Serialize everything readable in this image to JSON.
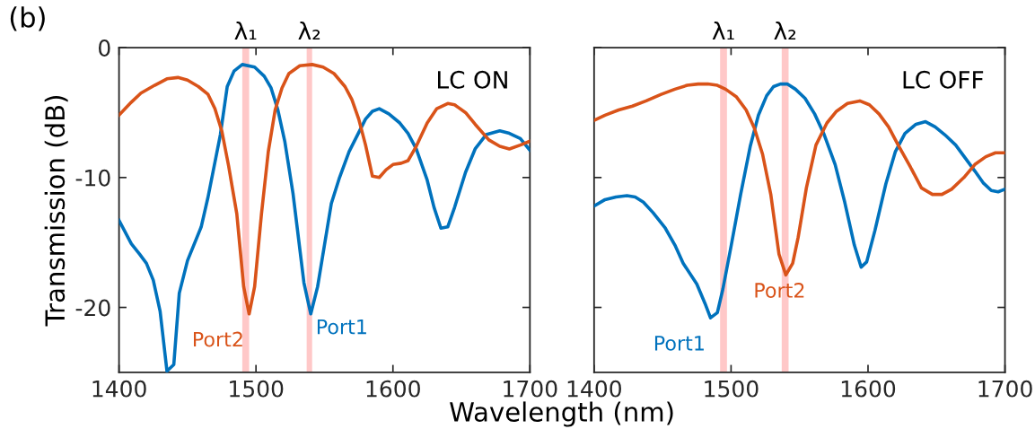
{
  "chart_data": [
    {
      "type": "line",
      "ylabel": "Transmission (dB)",
      "xlabel": "Wavelength (nm)",
      "xlim": [
        1400,
        1700
      ],
      "xticks": [
        1400,
        1500,
        1600,
        1700
      ],
      "ylim": [
        -25,
        0
      ],
      "yticks": [
        -20,
        -10,
        0
      ],
      "grid": false,
      "legend": false,
      "annotations": [
        "(b)",
        "LC ON"
      ],
      "bands": [
        {
          "axis": "x",
          "from": 1490,
          "to": 1495,
          "label": "λ₁",
          "color": "#ffc8c8"
        },
        {
          "axis": "x",
          "from": 1537,
          "to": 1541,
          "label": "λ₂",
          "color": "#ffc8c8"
        }
      ],
      "series": [
        {
          "name": "Port1",
          "color": "#0072bd",
          "x": [
            1400,
            1409,
            1415,
            1420,
            1425,
            1430,
            1435,
            1440,
            1444,
            1450,
            1460,
            1465,
            1474,
            1479,
            1484,
            1490,
            1499,
            1506,
            1511,
            1516,
            1521,
            1527,
            1535,
            1540,
            1545,
            1550,
            1555,
            1561,
            1568,
            1580,
            1585,
            1590,
            1597,
            1605,
            1611,
            1617,
            1625,
            1630,
            1635,
            1640,
            1645,
            1653,
            1660,
            1668,
            1678,
            1685,
            1693,
            1700
          ],
          "values": [
            -13.3,
            -15.1,
            -15.9,
            -16.6,
            -17.9,
            -20.3,
            -24.9,
            -24.4,
            -18.9,
            -16.4,
            -13.8,
            -11.5,
            -6.7,
            -3.0,
            -1.8,
            -1.3,
            -1.5,
            -2.2,
            -3.1,
            -4.8,
            -7.2,
            -11.2,
            -18.1,
            -20.5,
            -18.4,
            -15.2,
            -12.0,
            -10.0,
            -8.0,
            -5.5,
            -4.9,
            -4.7,
            -5.1,
            -5.8,
            -6.6,
            -7.8,
            -10.2,
            -12.3,
            -13.9,
            -13.8,
            -12.3,
            -9.6,
            -7.8,
            -6.7,
            -6.4,
            -6.6,
            -7.0,
            -7.9
          ]
        },
        {
          "name": "Port2",
          "color": "#d95319",
          "x": [
            1400,
            1409,
            1416,
            1426,
            1435,
            1443,
            1450,
            1458,
            1465,
            1470,
            1475,
            1480,
            1486,
            1491,
            1495,
            1499,
            1504,
            1509,
            1514,
            1519,
            1524,
            1532,
            1541,
            1549,
            1557,
            1565,
            1570,
            1575,
            1580,
            1585,
            1590,
            1595,
            1600,
            1606,
            1611,
            1617,
            1625,
            1632,
            1640,
            1645,
            1653,
            1660,
            1670,
            1678,
            1685,
            1693,
            1700
          ],
          "values": [
            -5.2,
            -4.2,
            -3.5,
            -2.9,
            -2.4,
            -2.3,
            -2.5,
            -3.0,
            -3.6,
            -4.7,
            -6.4,
            -9.1,
            -12.8,
            -18.4,
            -20.5,
            -18.4,
            -12.8,
            -8.0,
            -4.8,
            -3.1,
            -2.0,
            -1.4,
            -1.3,
            -1.5,
            -2.0,
            -3.0,
            -4.0,
            -5.5,
            -7.5,
            -9.9,
            -10.0,
            -9.4,
            -9.0,
            -8.9,
            -8.7,
            -7.6,
            -5.8,
            -4.7,
            -4.3,
            -4.4,
            -5.0,
            -5.9,
            -7.1,
            -7.6,
            -7.8,
            -7.5,
            -7.2
          ]
        }
      ]
    },
    {
      "type": "line",
      "xlim": [
        1400,
        1700
      ],
      "xticks": [
        1400,
        1500,
        1600,
        1700
      ],
      "ylim": [
        -25,
        0
      ],
      "yticks": [
        -20,
        -10,
        0
      ],
      "tick_labels": "x",
      "grid": false,
      "legend": false,
      "annotations": [
        "LC OFF"
      ],
      "bands": [
        {
          "axis": "x",
          "from": 1492,
          "to": 1497,
          "label": "λ₁",
          "color": "#ffc8c8"
        },
        {
          "axis": "x",
          "from": 1537,
          "to": 1542,
          "label": "λ₂",
          "color": "#ffc8c8"
        }
      ],
      "series": [
        {
          "name": "Port1",
          "color": "#0072bd",
          "x": [
            1400,
            1408,
            1416,
            1424,
            1430,
            1436,
            1443,
            1452,
            1459,
            1465,
            1475,
            1481,
            1485,
            1490,
            1494,
            1500,
            1507,
            1514,
            1520,
            1526,
            1531,
            1536,
            1541,
            1547,
            1554,
            1561,
            1568,
            1576,
            1583,
            1590,
            1595,
            1599,
            1605,
            1613,
            1620,
            1627,
            1635,
            1642,
            1649,
            1656,
            1664,
            1671,
            1678,
            1684,
            1690,
            1695,
            1700
          ],
          "values": [
            -12.2,
            -11.7,
            -11.5,
            -11.4,
            -11.5,
            -11.9,
            -12.7,
            -13.9,
            -15.2,
            -16.6,
            -18.2,
            -19.7,
            -20.8,
            -20.4,
            -18.6,
            -15.3,
            -11.3,
            -7.6,
            -5.2,
            -3.7,
            -3.0,
            -2.8,
            -2.8,
            -3.2,
            -3.9,
            -5.1,
            -6.7,
            -9.0,
            -11.9,
            -15.2,
            -16.9,
            -16.5,
            -14.1,
            -10.5,
            -8.0,
            -6.6,
            -5.9,
            -5.7,
            -6.1,
            -6.7,
            -7.5,
            -8.5,
            -9.5,
            -10.4,
            -11.0,
            -11.1,
            -10.9
          ]
        },
        {
          "name": "Port2",
          "color": "#d95319",
          "x": [
            1400,
            1408,
            1418,
            1428,
            1438,
            1449,
            1459,
            1468,
            1476,
            1483,
            1490,
            1496,
            1504,
            1511,
            1517,
            1523,
            1529,
            1535,
            1540,
            1545,
            1549,
            1555,
            1562,
            1570,
            1577,
            1585,
            1594,
            1601,
            1608,
            1615,
            1622,
            1631,
            1639,
            1647,
            1654,
            1661,
            1670,
            1678,
            1686,
            1693,
            1700
          ],
          "values": [
            -5.6,
            -5.2,
            -4.8,
            -4.5,
            -4.1,
            -3.6,
            -3.2,
            -2.9,
            -2.8,
            -2.8,
            -2.9,
            -3.2,
            -3.8,
            -4.8,
            -6.2,
            -8.2,
            -11.3,
            -15.9,
            -17.5,
            -16.6,
            -14.6,
            -10.8,
            -7.5,
            -5.8,
            -4.9,
            -4.3,
            -4.1,
            -4.4,
            -5.1,
            -6.1,
            -7.5,
            -9.2,
            -10.8,
            -11.3,
            -11.3,
            -10.9,
            -10.0,
            -9.0,
            -8.4,
            -8.1,
            -8.1
          ]
        }
      ]
    }
  ]
}
